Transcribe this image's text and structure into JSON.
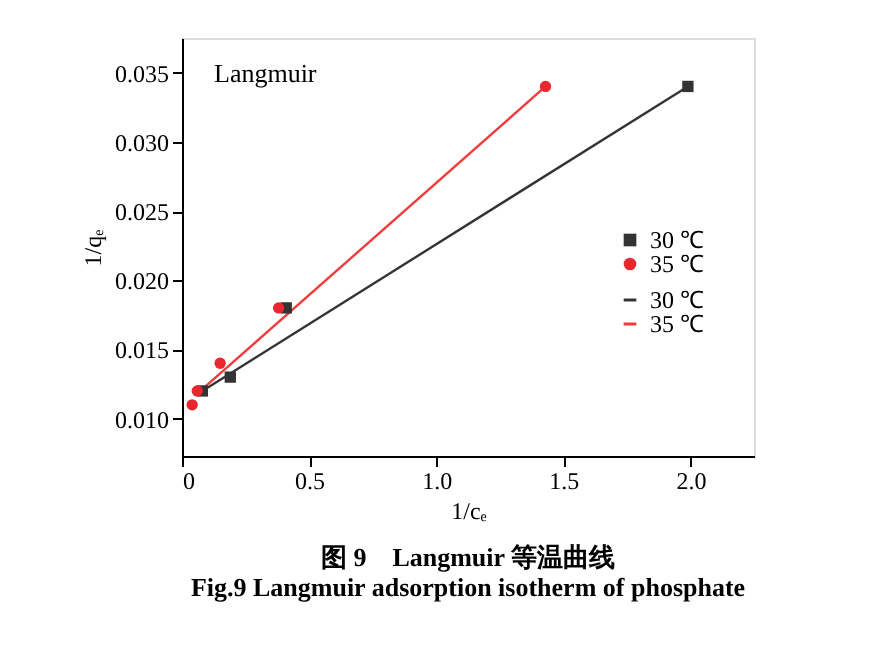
{
  "chart_data": {
    "type": "scatter",
    "xlabel": "1/cₑ",
    "ylabel": "1/qₑ",
    "xlim": [
      0,
      2.25
    ],
    "ylim": [
      0.0073,
      0.0375
    ],
    "xticks": [
      {
        "value": 0,
        "label": "0"
      },
      0.5,
      {
        "value": 1,
        "label": "1.0"
      },
      1.5,
      {
        "value": 2,
        "label": "2.0"
      }
    ],
    "yticks": [
      {
        "value": 0.01,
        "label": "0.010"
      },
      0.015,
      {
        "value": 0.02,
        "label": "0.020"
      },
      0.025,
      {
        "value": 0.03,
        "label": "0.030"
      },
      0.035
    ],
    "grid": false,
    "legend": "right",
    "annotations": [
      "Langmuir",
      "图 9　Langmuir 等温曲线",
      "Fig.9 Langmuir adsorption isotherm of phosphate"
    ],
    "series": [
      {
        "name": "30 ℃",
        "marker": "square",
        "color": "#333333",
        "x": [
          0.08,
          0.19,
          0.41,
          1.99
        ],
        "values": [
          0.012,
          0.013,
          0.018,
          0.034
        ]
      },
      {
        "name": "35 ℃",
        "marker": "circle",
        "color": "#e8282e",
        "x": [
          0.04,
          0.06,
          0.15,
          0.38,
          1.43
        ],
        "values": [
          0.011,
          0.012,
          0.014,
          0.018,
          0.034
        ]
      },
      {
        "name": "30 ℃",
        "type": "line",
        "line_style": "solid",
        "color": "#333333",
        "x": [
          0.08,
          1.99
        ],
        "values": [
          0.012,
          0.034
        ]
      },
      {
        "name": "35 ℃",
        "type": "line",
        "line_style": "solid",
        "color": "#f03c3c",
        "x": [
          0.06,
          1.43
        ],
        "values": [
          0.0118,
          0.034
        ]
      }
    ]
  }
}
